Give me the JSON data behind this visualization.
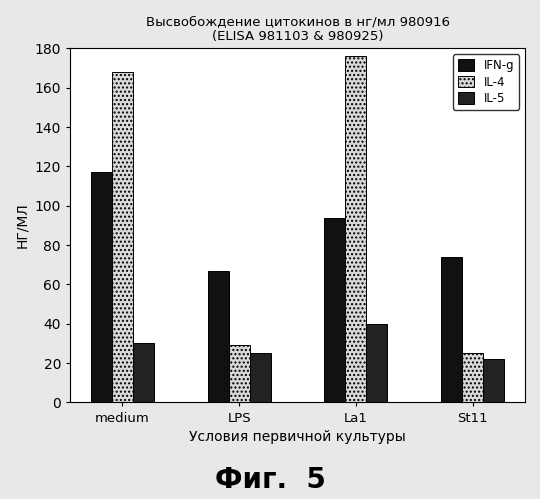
{
  "title_line1": "Высвобождение цитокинов в нг/мл 980916",
  "title_line2": "(ELISA 981103 & 980925)",
  "xlabel": "Условия первичной культуры",
  "ylabel": "НГ/МЛ",
  "fig_label": "Фиг.  5",
  "categories": [
    "medium",
    "LPS",
    "La1",
    "St11"
  ],
  "series": {
    "IFN-g": [
      117,
      67,
      94,
      74
    ],
    "IL-4": [
      168,
      29,
      176,
      25
    ],
    "IL-5": [
      30,
      25,
      40,
      22
    ]
  },
  "colors": {
    "IFN-g": "#111111",
    "IL-4": "#d8d8d8",
    "IL-5": "#222222"
  },
  "hatches": {
    "IFN-g": "",
    "IL-4": "....",
    "IL-5": ""
  },
  "ylim": [
    0,
    180
  ],
  "yticks": [
    0,
    20,
    40,
    60,
    80,
    100,
    120,
    140,
    160,
    180
  ],
  "bar_width": 0.18,
  "background_color": "#e8e8e8",
  "plot_bg": "#ffffff"
}
